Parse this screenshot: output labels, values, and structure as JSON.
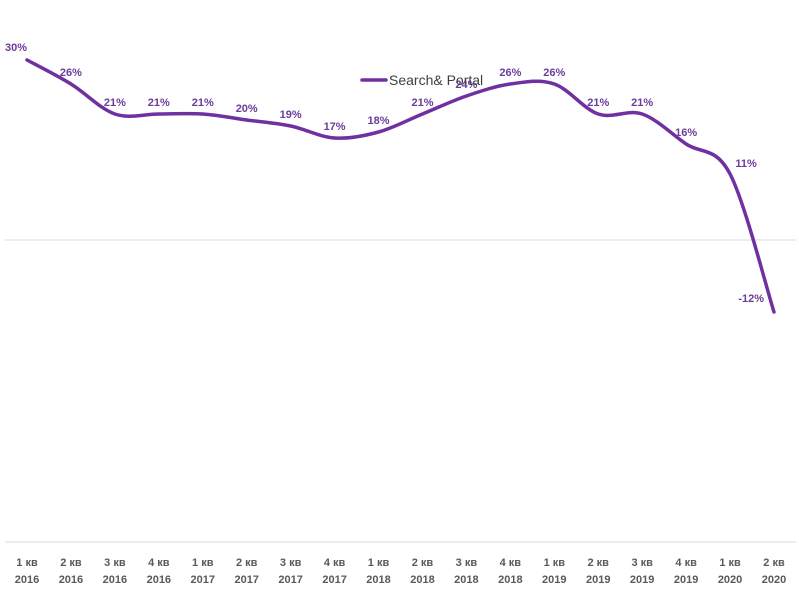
{
  "chart_data": {
    "type": "line",
    "title": "",
    "xlabel": "",
    "ylabel": "",
    "categories": [
      [
        "1 кв",
        "2016"
      ],
      [
        "2 кв",
        "2016"
      ],
      [
        "3 кв",
        "2016"
      ],
      [
        "4 кв",
        "2016"
      ],
      [
        "1 кв",
        "2017"
      ],
      [
        "2 кв",
        "2017"
      ],
      [
        "3 кв",
        "2017"
      ],
      [
        "4 кв",
        "2017"
      ],
      [
        "1 кв",
        "2018"
      ],
      [
        "2 кв",
        "2018"
      ],
      [
        "3 кв",
        "2018"
      ],
      [
        "4 кв",
        "2018"
      ],
      [
        "1 кв",
        "2019"
      ],
      [
        "2 кв",
        "2019"
      ],
      [
        "3 кв",
        "2019"
      ],
      [
        "4 кв",
        "2019"
      ],
      [
        "1 кв",
        "2020"
      ],
      [
        "2 кв",
        "2020"
      ]
    ],
    "series": [
      {
        "name": "Search& Portal",
        "values": [
          30,
          26,
          21,
          21,
          21,
          20,
          19,
          17,
          18,
          21,
          24,
          26,
          26,
          21,
          21,
          16,
          11,
          -12
        ],
        "labels": [
          "30%",
          "26%",
          "21%",
          "21%",
          "21%",
          "20%",
          "19%",
          "17%",
          "18%",
          "21%",
          "24%",
          "26%",
          "26%",
          "21%",
          "21%",
          "16%",
          "11%",
          "-12%"
        ],
        "color": "#7030a0"
      }
    ],
    "ylim": [
      -50,
      40
    ],
    "zero_line": true,
    "grid": false,
    "legend": "top-center"
  },
  "colors": {
    "line": "#7030a0",
    "label": "#6a3d9a",
    "axis": "#d9d9d9",
    "tick": "#595959"
  }
}
